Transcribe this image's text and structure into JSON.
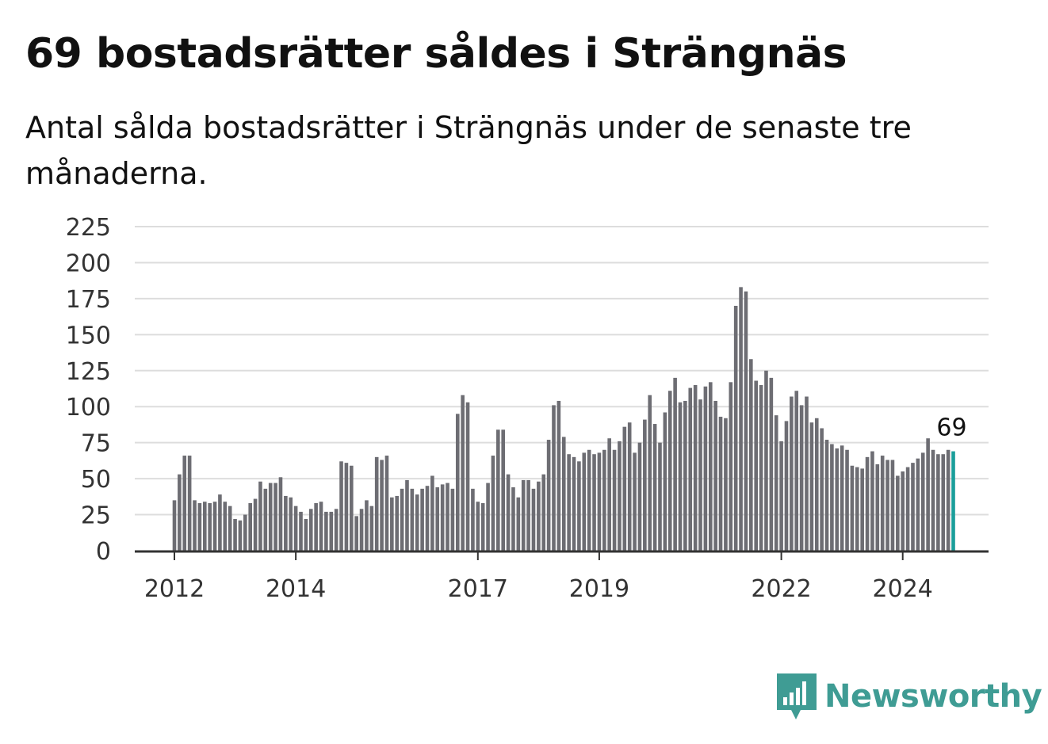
{
  "header": {
    "title": "69 bostadsrätter såldes i Strängnäs",
    "subtitle": "Antal sålda bostadsrätter i Strängnäs under de senaste tre månaderna."
  },
  "branding": {
    "name": "Newsworthy",
    "icon": "newsworthy-logo-icon",
    "color": "#3f9c94"
  },
  "colors": {
    "bar": "#6d6d73",
    "highlight": "#1a9e9a",
    "grid": "#dddddd",
    "axis": "#333333"
  },
  "chart_data": {
    "type": "bar",
    "title": "69 bostadsrätter såldes i Strängnäs",
    "xlabel": "",
    "ylabel": "",
    "ylim": [
      0,
      225
    ],
    "yticks": [
      0,
      25,
      50,
      75,
      100,
      125,
      150,
      175,
      200,
      225
    ],
    "xticks": [
      {
        "label": "2012",
        "year": 2012,
        "month": 1
      },
      {
        "label": "2014",
        "year": 2014,
        "month": 1
      },
      {
        "label": "2017",
        "year": 2017,
        "month": 1
      },
      {
        "label": "2019",
        "year": 2019,
        "month": 1
      },
      {
        "label": "2022",
        "year": 2022,
        "month": 1
      },
      {
        "label": "2024",
        "year": 2024,
        "month": 1
      }
    ],
    "grid": true,
    "start": {
      "year": 2012,
      "month": 1
    },
    "end": {
      "year": 2024,
      "month": 11
    },
    "values": [
      35,
      53,
      66,
      66,
      35,
      33,
      34,
      33,
      34,
      39,
      34,
      31,
      22,
      21,
      25,
      33,
      36,
      48,
      43,
      47,
      47,
      51,
      38,
      37,
      31,
      27,
      22,
      29,
      33,
      34,
      27,
      27,
      29,
      62,
      61,
      59,
      24,
      29,
      35,
      31,
      65,
      63,
      66,
      37,
      38,
      43,
      49,
      43,
      39,
      43,
      45,
      52,
      44,
      46,
      47,
      43,
      95,
      108,
      103,
      43,
      34,
      33,
      47,
      66,
      84,
      84,
      53,
      44,
      37,
      49,
      49,
      43,
      48,
      53,
      77,
      101,
      104,
      79,
      67,
      65,
      62,
      68,
      70,
      67,
      68,
      70,
      78,
      70,
      76,
      86,
      89,
      68,
      75,
      91,
      108,
      88,
      75,
      96,
      111,
      120,
      103,
      104,
      113,
      115,
      105,
      114,
      117,
      104,
      93,
      92,
      117,
      170,
      183,
      180,
      133,
      118,
      115,
      125,
      120,
      94,
      76,
      90,
      107,
      111,
      101,
      107,
      89,
      92,
      85,
      77,
      74,
      71,
      73,
      70,
      59,
      58,
      57,
      65,
      69,
      60,
      66,
      63,
      63,
      52,
      55,
      58,
      61,
      64,
      68,
      78,
      70,
      67,
      67,
      70,
      69
    ],
    "highlight": {
      "label": "69",
      "value": 69
    }
  }
}
